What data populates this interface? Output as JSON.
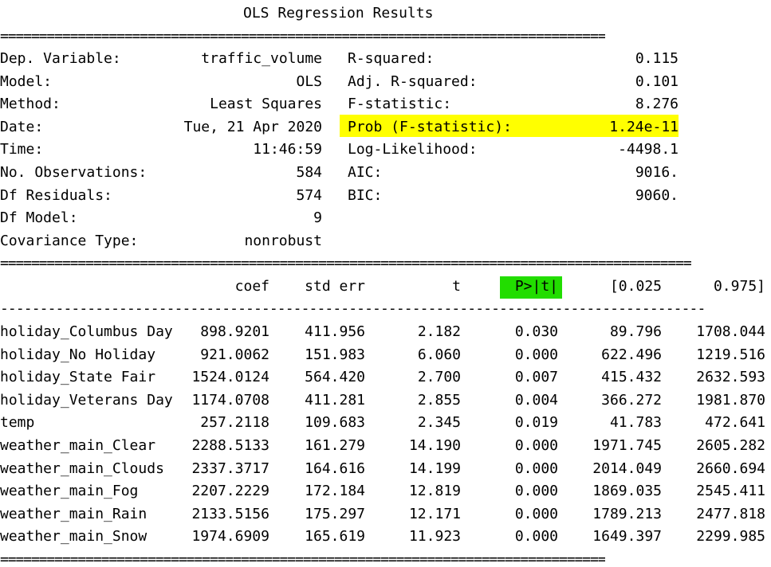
{
  "title": "OLS Regression Results",
  "rules": {
    "bold_top": "==============================================================================",
    "bold_full": "=========================================================================================",
    "dash_full": "-----------------------------------------------------------------------------------------",
    "bold_bottom": "=============================================================================="
  },
  "summary": {
    "left": [
      {
        "label": "Dep. Variable:",
        "value": "traffic_volume"
      },
      {
        "label": "Model:",
        "value": "OLS"
      },
      {
        "label": "Method:",
        "value": "Least Squares"
      },
      {
        "label": "Date:",
        "value": "Tue, 21 Apr 2020"
      },
      {
        "label": "Time:",
        "value": "11:46:59"
      },
      {
        "label": "No. Observations:",
        "value": "584"
      },
      {
        "label": "Df Residuals:",
        "value": "574"
      },
      {
        "label": "Df Model:",
        "value": "9"
      },
      {
        "label": "Covariance Type:",
        "value": "nonrobust"
      }
    ],
    "right": [
      {
        "label": "R-squared:",
        "value": "0.115"
      },
      {
        "label": "Adj. R-squared:",
        "value": "0.101"
      },
      {
        "label": "F-statistic:",
        "value": "8.276"
      },
      {
        "label": "Prob (F-statistic):",
        "value": "1.24e-11"
      },
      {
        "label": "Log-Likelihood:",
        "value": "-4498.1"
      },
      {
        "label": "AIC:",
        "value": "9016."
      },
      {
        "label": "BIC:",
        "value": "9060."
      }
    ]
  },
  "coef_table": {
    "headers": [
      "coef",
      "std err",
      "t",
      "P>|t|",
      "[0.025",
      "0.975]"
    ],
    "rows": [
      {
        "name": "holiday_Columbus Day",
        "cells": [
          "898.9201",
          "411.956",
          "2.182",
          "0.030",
          "89.796",
          "1708.044"
        ]
      },
      {
        "name": "holiday_No Holiday",
        "cells": [
          "921.0062",
          "151.983",
          "6.060",
          "0.000",
          "622.496",
          "1219.516"
        ]
      },
      {
        "name": "holiday_State Fair",
        "cells": [
          "1524.0124",
          "564.420",
          "2.700",
          "0.007",
          "415.432",
          "2632.593"
        ]
      },
      {
        "name": "holiday_Veterans Day",
        "cells": [
          "1174.0708",
          "411.281",
          "2.855",
          "0.004",
          "366.272",
          "1981.870"
        ]
      },
      {
        "name": "temp",
        "cells": [
          "257.2118",
          "109.683",
          "2.345",
          "0.019",
          "41.783",
          "472.641"
        ]
      },
      {
        "name": "weather_main_Clear",
        "cells": [
          "2288.5133",
          "161.279",
          "14.190",
          "0.000",
          "1971.745",
          "2605.282"
        ]
      },
      {
        "name": "weather_main_Clouds",
        "cells": [
          "2337.3717",
          "164.616",
          "14.199",
          "0.000",
          "2014.049",
          "2660.694"
        ]
      },
      {
        "name": "weather_main_Fog",
        "cells": [
          "2207.2229",
          "172.184",
          "12.819",
          "0.000",
          "1869.035",
          "2545.411"
        ]
      },
      {
        "name": "weather_main_Rain",
        "cells": [
          "2133.5156",
          "175.297",
          "12.171",
          "0.000",
          "1789.213",
          "2477.818"
        ]
      },
      {
        "name": "weather_main_Snow",
        "cells": [
          "1974.6909",
          "165.619",
          "11.923",
          "0.000",
          "1649.397",
          "2299.985"
        ]
      }
    ]
  },
  "highlights": {
    "prob_f_color": "#ffff00",
    "p_header_color": "#22dd00"
  }
}
